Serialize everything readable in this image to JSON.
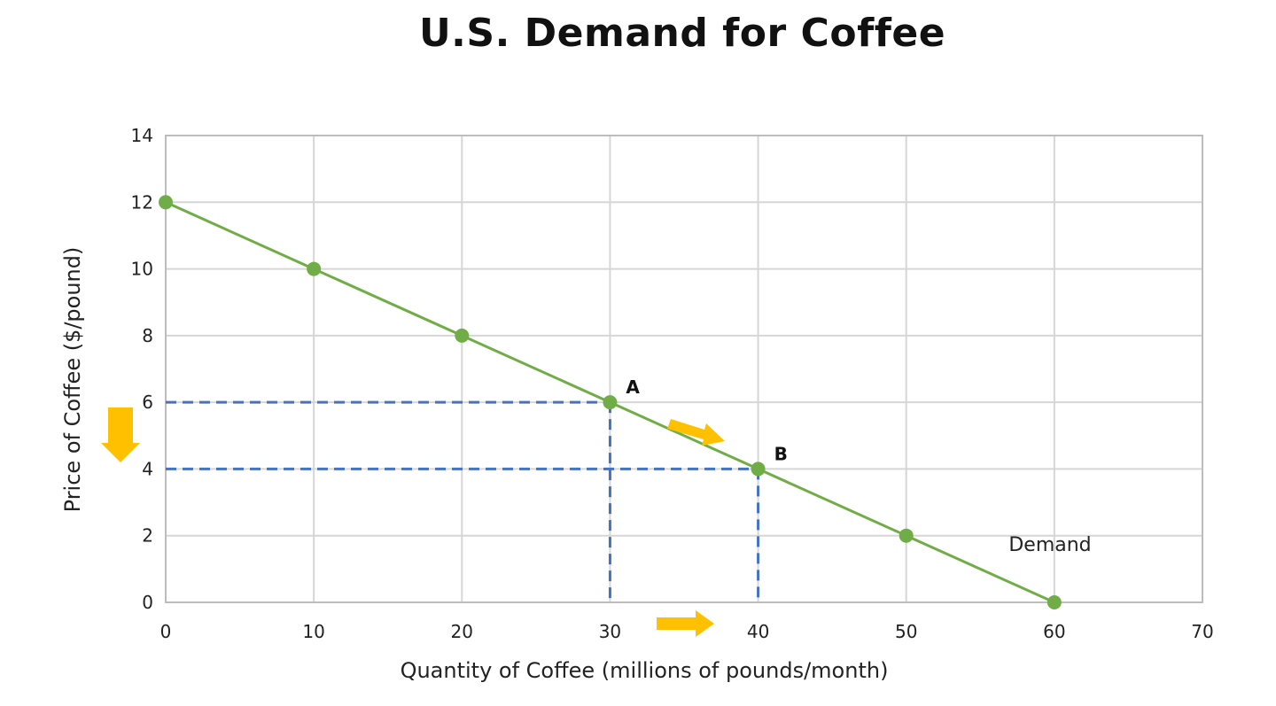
{
  "chart_data": {
    "type": "line",
    "title": "U.S. Demand for Coffee",
    "xlabel": "Quantity of Coffee (millions of pounds/month)",
    "ylabel": "Price of Coffee ($/pound)",
    "xlim": [
      0,
      70
    ],
    "ylim": [
      0,
      14
    ],
    "x_ticks": [
      0,
      10,
      20,
      30,
      40,
      50,
      60,
      70
    ],
    "y_ticks": [
      0,
      2,
      4,
      6,
      8,
      10,
      12,
      14
    ],
    "grid": true,
    "series": [
      {
        "name": "Demand",
        "color": "#70ad47",
        "x": [
          0,
          10,
          20,
          30,
          40,
          50,
          60
        ],
        "y": [
          12,
          10,
          8,
          6,
          4,
          2,
          0
        ]
      }
    ],
    "annotations": [
      {
        "label": "A",
        "x": 30,
        "y": 6
      },
      {
        "label": "B",
        "x": 40,
        "y": 4
      }
    ],
    "guide_color": "#4472c4",
    "arrow_color": "#ffc000"
  }
}
